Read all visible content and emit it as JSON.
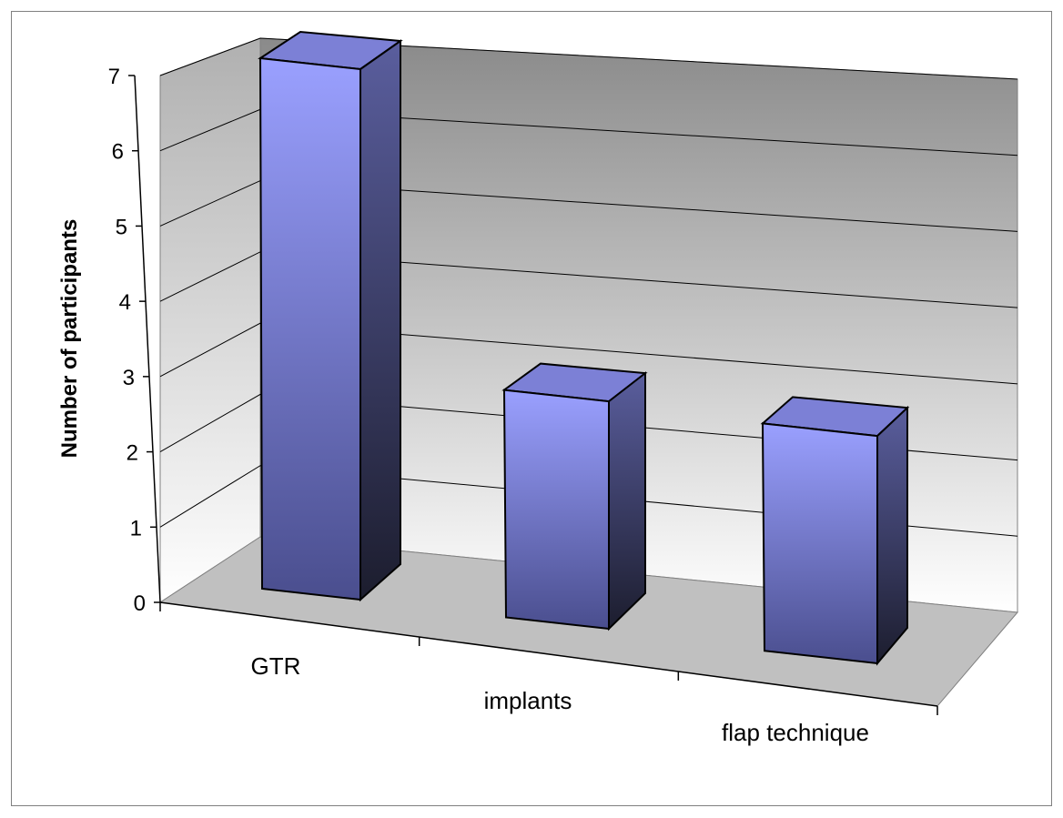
{
  "chart_data": {
    "type": "bar",
    "style": "3d-column",
    "title": "",
    "xlabel": "",
    "ylabel": "Number of participants",
    "categories": [
      "GTR",
      "implants",
      "flap technique"
    ],
    "values": [
      7,
      3,
      3
    ],
    "ylim": [
      0,
      7
    ],
    "yticks": [
      "0",
      "1",
      "2",
      "3",
      "4",
      "5",
      "6",
      "7"
    ],
    "grid": true,
    "legend": "none",
    "colors": {
      "bar_front_light": "#9aa0ff",
      "bar_front_dark": "#4a4e8e",
      "bar_side": "#3a3d6a",
      "bar_top": "#7c80d6",
      "wall_top": "#8a8a8a",
      "wall_bottom": "#ffffff",
      "floor": "#c0c0c0",
      "gridline": "#000000"
    }
  }
}
